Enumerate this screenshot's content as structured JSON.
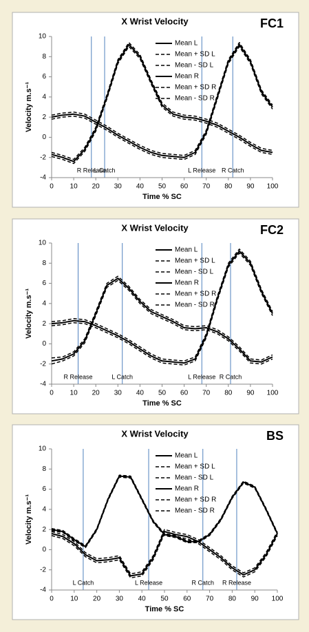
{
  "chart_data": [
    {
      "type": "line",
      "title": "X Wrist Velocity",
      "label": "FC1",
      "xlabel": "Time % SC",
      "ylabel": "Velocity m.s⁻¹",
      "x": [
        0,
        5,
        10,
        15,
        20,
        25,
        30,
        35,
        40,
        45,
        50,
        55,
        60,
        65,
        70,
        75,
        80,
        85,
        90,
        95,
        100
      ],
      "xlim": [
        0,
        100
      ],
      "ylim": [
        -4,
        10
      ],
      "xticks": [
        0,
        10,
        20,
        30,
        40,
        50,
        60,
        70,
        80,
        90,
        100
      ],
      "yticks": [
        -4,
        -2,
        0,
        2,
        4,
        6,
        8,
        10
      ],
      "marker_color": "#4f81bd",
      "markers": [
        {
          "x": 18,
          "label": "R Release"
        },
        {
          "x": 24,
          "label": "L Catch"
        },
        {
          "x": 68,
          "label": "L Release"
        },
        {
          "x": 82,
          "label": "R Catch"
        }
      ],
      "series": [
        {
          "name": "Mean L",
          "color": "#000000",
          "style": "solid",
          "values": [
            -1.7,
            -2.0,
            -2.4,
            -1.2,
            0.8,
            4.0,
            7.5,
            9.2,
            8.0,
            5.5,
            3.2,
            2.3,
            2.0,
            1.9,
            1.6,
            1.2,
            0.6,
            0.0,
            -0.7,
            -1.3,
            -1.5
          ]
        },
        {
          "name": "Mean + SD L",
          "color": "#000000",
          "style": "dashed",
          "values": [
            -1.5,
            -1.8,
            -2.2,
            -1.0,
            1.0,
            4.2,
            7.7,
            9.4,
            8.2,
            5.7,
            3.4,
            2.5,
            2.2,
            2.1,
            1.8,
            1.4,
            0.8,
            0.2,
            -0.5,
            -1.1,
            -1.3
          ]
        },
        {
          "name": "Mean - SD L",
          "color": "#000000",
          "style": "dashed",
          "values": [
            -1.9,
            -2.2,
            -2.6,
            -1.4,
            0.6,
            3.8,
            7.3,
            9.0,
            7.8,
            5.3,
            3.0,
            2.1,
            1.8,
            1.7,
            1.4,
            1.0,
            0.4,
            -0.2,
            -0.9,
            -1.5,
            -1.7
          ]
        },
        {
          "name": "Mean R",
          "color": "#000000",
          "style": "solid",
          "values": [
            2.0,
            2.2,
            2.3,
            2.1,
            1.5,
            0.9,
            0.2,
            -0.4,
            -1.0,
            -1.5,
            -1.8,
            -1.9,
            -2.0,
            -1.5,
            0.5,
            4.0,
            7.5,
            9.2,
            7.5,
            4.5,
            3.0
          ]
        },
        {
          "name": "Mean + SD R",
          "color": "#000000",
          "style": "dashed",
          "values": [
            2.2,
            2.4,
            2.5,
            2.3,
            1.7,
            1.1,
            0.4,
            -0.2,
            -0.8,
            -1.3,
            -1.6,
            -1.7,
            -1.8,
            -1.3,
            0.7,
            4.2,
            7.7,
            9.4,
            7.7,
            4.7,
            3.2
          ]
        },
        {
          "name": "Mean - SD R",
          "color": "#000000",
          "style": "dashed",
          "values": [
            1.8,
            2.0,
            2.1,
            1.9,
            1.3,
            0.7,
            0.0,
            -0.6,
            -1.2,
            -1.7,
            -2.0,
            -2.1,
            -2.2,
            -1.7,
            0.3,
            3.8,
            7.3,
            9.0,
            7.3,
            4.3,
            2.8
          ]
        }
      ]
    },
    {
      "type": "line",
      "title": "X Wrist Velocity",
      "label": "FC2",
      "xlabel": "Time % SC",
      "ylabel": "Velocity m.s⁻¹",
      "x": [
        0,
        5,
        10,
        15,
        20,
        25,
        30,
        35,
        40,
        45,
        50,
        55,
        60,
        65,
        70,
        75,
        80,
        85,
        90,
        95,
        100
      ],
      "xlim": [
        0,
        100
      ],
      "ylim": [
        -4,
        10
      ],
      "xticks": [
        0,
        10,
        20,
        30,
        40,
        50,
        60,
        70,
        80,
        90,
        100
      ],
      "yticks": [
        -4,
        -2,
        0,
        2,
        4,
        6,
        8,
        10
      ],
      "marker_color": "#4f81bd",
      "markers": [
        {
          "x": 12,
          "label": "R Release"
        },
        {
          "x": 32,
          "label": "L Catch"
        },
        {
          "x": 68,
          "label": "L Release"
        },
        {
          "x": 81,
          "label": "R Catch"
        }
      ],
      "series": [
        {
          "name": "Mean L",
          "color": "#000000",
          "style": "solid",
          "values": [
            -1.7,
            -1.5,
            -1.0,
            0.3,
            3.0,
            5.8,
            6.5,
            5.5,
            4.2,
            3.2,
            2.7,
            2.2,
            1.6,
            1.5,
            1.6,
            1.2,
            0.5,
            -0.5,
            -1.7,
            -1.8,
            -1.3
          ]
        },
        {
          "name": "Mean + SD L",
          "color": "#000000",
          "style": "dashed",
          "values": [
            -1.4,
            -1.3,
            -0.8,
            0.5,
            3.2,
            6.0,
            6.7,
            5.7,
            4.4,
            3.4,
            2.9,
            2.4,
            1.8,
            1.7,
            1.8,
            1.4,
            0.7,
            -0.3,
            -1.5,
            -1.6,
            -1.1
          ]
        },
        {
          "name": "Mean - SD L",
          "color": "#000000",
          "style": "dashed",
          "values": [
            -2.0,
            -1.7,
            -1.2,
            0.1,
            2.8,
            5.6,
            6.3,
            5.3,
            4.0,
            3.0,
            2.5,
            2.0,
            1.4,
            1.3,
            1.4,
            1.0,
            0.3,
            -0.7,
            -1.9,
            -2.0,
            -1.5
          ]
        },
        {
          "name": "Mean R",
          "color": "#000000",
          "style": "solid",
          "values": [
            2.0,
            2.1,
            2.3,
            2.2,
            1.8,
            1.3,
            0.8,
            0.2,
            -0.5,
            -1.2,
            -1.7,
            -1.8,
            -1.9,
            -1.5,
            0.8,
            4.5,
            7.8,
            9.2,
            8.0,
            5.2,
            3.0
          ]
        },
        {
          "name": "Mean + SD R",
          "color": "#000000",
          "style": "dashed",
          "values": [
            2.2,
            2.3,
            2.5,
            2.4,
            2.0,
            1.5,
            1.0,
            0.4,
            -0.3,
            -1.0,
            -1.5,
            -1.6,
            -1.7,
            -1.3,
            1.0,
            4.7,
            8.0,
            9.4,
            8.2,
            5.4,
            3.2
          ]
        },
        {
          "name": "Mean - SD R",
          "color": "#000000",
          "style": "dashed",
          "values": [
            1.8,
            1.9,
            2.1,
            2.0,
            1.6,
            1.1,
            0.6,
            0.0,
            -0.7,
            -1.4,
            -1.9,
            -2.0,
            -2.1,
            -1.7,
            0.6,
            4.3,
            7.6,
            9.0,
            7.8,
            5.0,
            2.8
          ]
        }
      ]
    },
    {
      "type": "line",
      "title": "X Wrist Velocity",
      "label": "BS",
      "xlabel": "Time % SC",
      "ylabel": "Velocity m.s⁻¹",
      "x": [
        0,
        5,
        10,
        15,
        20,
        25,
        30,
        35,
        40,
        45,
        50,
        55,
        60,
        65,
        70,
        75,
        80,
        85,
        90,
        95,
        100
      ],
      "xlim": [
        0,
        100
      ],
      "ylim": [
        -4,
        10
      ],
      "xticks": [
        0,
        10,
        20,
        30,
        40,
        50,
        60,
        70,
        80,
        90,
        100
      ],
      "yticks": [
        -4,
        -2,
        0,
        2,
        4,
        6,
        8,
        10
      ],
      "marker_color": "#4f81bd",
      "markers": [
        {
          "x": 14,
          "label": "L Catch"
        },
        {
          "x": 43,
          "label": "L Release"
        },
        {
          "x": 67,
          "label": "R Catch"
        },
        {
          "x": 82,
          "label": "R Release"
        }
      ],
      "series": [
        {
          "name": "Mean L",
          "color": "#000000",
          "style": "solid",
          "values": [
            2.0,
            1.8,
            1.0,
            0.3,
            2.0,
            5.0,
            7.3,
            7.2,
            5.0,
            2.8,
            1.5,
            1.3,
            0.8,
            0.8,
            1.5,
            3.0,
            5.2,
            6.7,
            6.2,
            4.0,
            1.6
          ]
        },
        {
          "name": "Mean + SD L",
          "color": "#000000",
          "style": "dashed",
          "values": [
            2.1,
            1.9,
            1.1,
            0.4,
            2.1,
            5.1,
            7.4,
            7.3,
            5.1,
            2.9,
            1.6,
            1.4,
            0.9,
            0.9,
            1.6,
            3.1,
            5.3,
            6.8,
            6.3,
            4.1,
            1.7
          ]
        },
        {
          "name": "Mean - SD L",
          "color": "#000000",
          "style": "dashed",
          "values": [
            1.9,
            1.7,
            0.9,
            0.2,
            1.9,
            4.9,
            7.2,
            7.1,
            4.9,
            2.7,
            1.4,
            1.2,
            0.7,
            0.7,
            1.4,
            2.9,
            5.1,
            6.6,
            6.1,
            3.9,
            1.5
          ]
        },
        {
          "name": "Mean R",
          "color": "#000000",
          "style": "solid",
          "values": [
            1.6,
            1.3,
            0.6,
            -0.5,
            -1.1,
            -1.0,
            -0.8,
            -2.6,
            -2.4,
            -0.8,
            1.8,
            1.5,
            1.3,
            0.8,
            0.0,
            -0.8,
            -1.8,
            -2.5,
            -2.0,
            -0.5,
            1.6
          ]
        },
        {
          "name": "Mean + SD R",
          "color": "#000000",
          "style": "dashed",
          "values": [
            1.8,
            1.5,
            0.8,
            -0.3,
            -0.9,
            -0.8,
            -0.6,
            -2.4,
            -2.2,
            -0.6,
            2.0,
            1.7,
            1.5,
            1.0,
            0.2,
            -0.6,
            -1.6,
            -2.3,
            -1.8,
            -0.3,
            1.8
          ]
        },
        {
          "name": "Mean - SD R",
          "color": "#000000",
          "style": "dashed",
          "values": [
            1.4,
            1.1,
            0.4,
            -0.7,
            -1.3,
            -1.2,
            -1.0,
            -2.8,
            -2.6,
            -1.0,
            1.6,
            1.3,
            1.1,
            0.6,
            -0.2,
            -1.0,
            -2.0,
            -2.7,
            -2.2,
            -0.7,
            1.4
          ]
        }
      ]
    }
  ]
}
